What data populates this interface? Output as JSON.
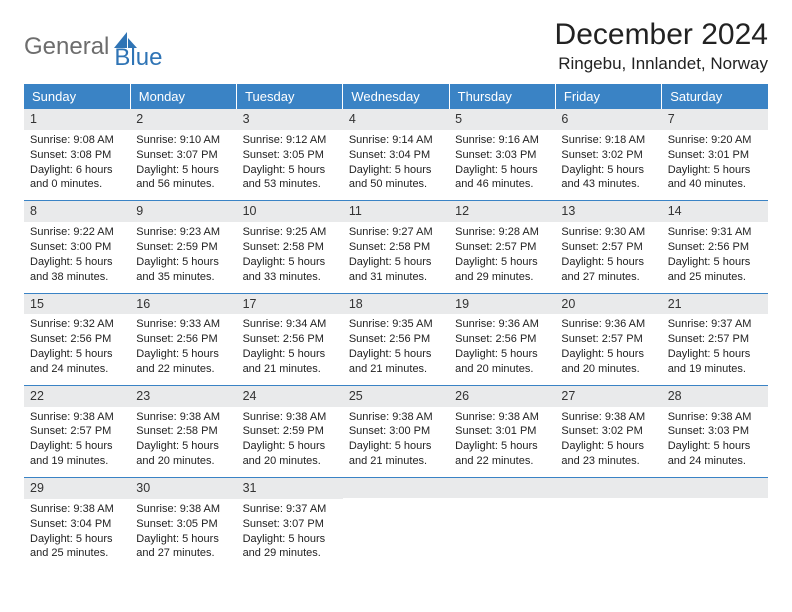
{
  "brand": {
    "part1": "General",
    "part2": "Blue"
  },
  "title": "December 2024",
  "location": "Ringebu, Innlandet, Norway",
  "colors": {
    "header_bg": "#3a83c5",
    "header_text": "#ffffff",
    "daynum_bg": "#e9eaeb",
    "border": "#3a83c5",
    "logo_gray": "#6d6d6d",
    "logo_blue": "#2f74b5",
    "text": "#222222",
    "page_bg": "#ffffff"
  },
  "weekdays": [
    "Sunday",
    "Monday",
    "Tuesday",
    "Wednesday",
    "Thursday",
    "Friday",
    "Saturday"
  ],
  "weeks": [
    [
      {
        "day": "1",
        "sunrise": "Sunrise: 9:08 AM",
        "sunset": "Sunset: 3:08 PM",
        "daylight1": "Daylight: 6 hours",
        "daylight2": "and 0 minutes."
      },
      {
        "day": "2",
        "sunrise": "Sunrise: 9:10 AM",
        "sunset": "Sunset: 3:07 PM",
        "daylight1": "Daylight: 5 hours",
        "daylight2": "and 56 minutes."
      },
      {
        "day": "3",
        "sunrise": "Sunrise: 9:12 AM",
        "sunset": "Sunset: 3:05 PM",
        "daylight1": "Daylight: 5 hours",
        "daylight2": "and 53 minutes."
      },
      {
        "day": "4",
        "sunrise": "Sunrise: 9:14 AM",
        "sunset": "Sunset: 3:04 PM",
        "daylight1": "Daylight: 5 hours",
        "daylight2": "and 50 minutes."
      },
      {
        "day": "5",
        "sunrise": "Sunrise: 9:16 AM",
        "sunset": "Sunset: 3:03 PM",
        "daylight1": "Daylight: 5 hours",
        "daylight2": "and 46 minutes."
      },
      {
        "day": "6",
        "sunrise": "Sunrise: 9:18 AM",
        "sunset": "Sunset: 3:02 PM",
        "daylight1": "Daylight: 5 hours",
        "daylight2": "and 43 minutes."
      },
      {
        "day": "7",
        "sunrise": "Sunrise: 9:20 AM",
        "sunset": "Sunset: 3:01 PM",
        "daylight1": "Daylight: 5 hours",
        "daylight2": "and 40 minutes."
      }
    ],
    [
      {
        "day": "8",
        "sunrise": "Sunrise: 9:22 AM",
        "sunset": "Sunset: 3:00 PM",
        "daylight1": "Daylight: 5 hours",
        "daylight2": "and 38 minutes."
      },
      {
        "day": "9",
        "sunrise": "Sunrise: 9:23 AM",
        "sunset": "Sunset: 2:59 PM",
        "daylight1": "Daylight: 5 hours",
        "daylight2": "and 35 minutes."
      },
      {
        "day": "10",
        "sunrise": "Sunrise: 9:25 AM",
        "sunset": "Sunset: 2:58 PM",
        "daylight1": "Daylight: 5 hours",
        "daylight2": "and 33 minutes."
      },
      {
        "day": "11",
        "sunrise": "Sunrise: 9:27 AM",
        "sunset": "Sunset: 2:58 PM",
        "daylight1": "Daylight: 5 hours",
        "daylight2": "and 31 minutes."
      },
      {
        "day": "12",
        "sunrise": "Sunrise: 9:28 AM",
        "sunset": "Sunset: 2:57 PM",
        "daylight1": "Daylight: 5 hours",
        "daylight2": "and 29 minutes."
      },
      {
        "day": "13",
        "sunrise": "Sunrise: 9:30 AM",
        "sunset": "Sunset: 2:57 PM",
        "daylight1": "Daylight: 5 hours",
        "daylight2": "and 27 minutes."
      },
      {
        "day": "14",
        "sunrise": "Sunrise: 9:31 AM",
        "sunset": "Sunset: 2:56 PM",
        "daylight1": "Daylight: 5 hours",
        "daylight2": "and 25 minutes."
      }
    ],
    [
      {
        "day": "15",
        "sunrise": "Sunrise: 9:32 AM",
        "sunset": "Sunset: 2:56 PM",
        "daylight1": "Daylight: 5 hours",
        "daylight2": "and 24 minutes."
      },
      {
        "day": "16",
        "sunrise": "Sunrise: 9:33 AM",
        "sunset": "Sunset: 2:56 PM",
        "daylight1": "Daylight: 5 hours",
        "daylight2": "and 22 minutes."
      },
      {
        "day": "17",
        "sunrise": "Sunrise: 9:34 AM",
        "sunset": "Sunset: 2:56 PM",
        "daylight1": "Daylight: 5 hours",
        "daylight2": "and 21 minutes."
      },
      {
        "day": "18",
        "sunrise": "Sunrise: 9:35 AM",
        "sunset": "Sunset: 2:56 PM",
        "daylight1": "Daylight: 5 hours",
        "daylight2": "and 21 minutes."
      },
      {
        "day": "19",
        "sunrise": "Sunrise: 9:36 AM",
        "sunset": "Sunset: 2:56 PM",
        "daylight1": "Daylight: 5 hours",
        "daylight2": "and 20 minutes."
      },
      {
        "day": "20",
        "sunrise": "Sunrise: 9:36 AM",
        "sunset": "Sunset: 2:57 PM",
        "daylight1": "Daylight: 5 hours",
        "daylight2": "and 20 minutes."
      },
      {
        "day": "21",
        "sunrise": "Sunrise: 9:37 AM",
        "sunset": "Sunset: 2:57 PM",
        "daylight1": "Daylight: 5 hours",
        "daylight2": "and 19 minutes."
      }
    ],
    [
      {
        "day": "22",
        "sunrise": "Sunrise: 9:38 AM",
        "sunset": "Sunset: 2:57 PM",
        "daylight1": "Daylight: 5 hours",
        "daylight2": "and 19 minutes."
      },
      {
        "day": "23",
        "sunrise": "Sunrise: 9:38 AM",
        "sunset": "Sunset: 2:58 PM",
        "daylight1": "Daylight: 5 hours",
        "daylight2": "and 20 minutes."
      },
      {
        "day": "24",
        "sunrise": "Sunrise: 9:38 AM",
        "sunset": "Sunset: 2:59 PM",
        "daylight1": "Daylight: 5 hours",
        "daylight2": "and 20 minutes."
      },
      {
        "day": "25",
        "sunrise": "Sunrise: 9:38 AM",
        "sunset": "Sunset: 3:00 PM",
        "daylight1": "Daylight: 5 hours",
        "daylight2": "and 21 minutes."
      },
      {
        "day": "26",
        "sunrise": "Sunrise: 9:38 AM",
        "sunset": "Sunset: 3:01 PM",
        "daylight1": "Daylight: 5 hours",
        "daylight2": "and 22 minutes."
      },
      {
        "day": "27",
        "sunrise": "Sunrise: 9:38 AM",
        "sunset": "Sunset: 3:02 PM",
        "daylight1": "Daylight: 5 hours",
        "daylight2": "and 23 minutes."
      },
      {
        "day": "28",
        "sunrise": "Sunrise: 9:38 AM",
        "sunset": "Sunset: 3:03 PM",
        "daylight1": "Daylight: 5 hours",
        "daylight2": "and 24 minutes."
      }
    ],
    [
      {
        "day": "29",
        "sunrise": "Sunrise: 9:38 AM",
        "sunset": "Sunset: 3:04 PM",
        "daylight1": "Daylight: 5 hours",
        "daylight2": "and 25 minutes."
      },
      {
        "day": "30",
        "sunrise": "Sunrise: 9:38 AM",
        "sunset": "Sunset: 3:05 PM",
        "daylight1": "Daylight: 5 hours",
        "daylight2": "and 27 minutes."
      },
      {
        "day": "31",
        "sunrise": "Sunrise: 9:37 AM",
        "sunset": "Sunset: 3:07 PM",
        "daylight1": "Daylight: 5 hours",
        "daylight2": "and 29 minutes."
      },
      {
        "day": "",
        "sunrise": "",
        "sunset": "",
        "daylight1": "",
        "daylight2": ""
      },
      {
        "day": "",
        "sunrise": "",
        "sunset": "",
        "daylight1": "",
        "daylight2": ""
      },
      {
        "day": "",
        "sunrise": "",
        "sunset": "",
        "daylight1": "",
        "daylight2": ""
      },
      {
        "day": "",
        "sunrise": "",
        "sunset": "",
        "daylight1": "",
        "daylight2": ""
      }
    ]
  ]
}
